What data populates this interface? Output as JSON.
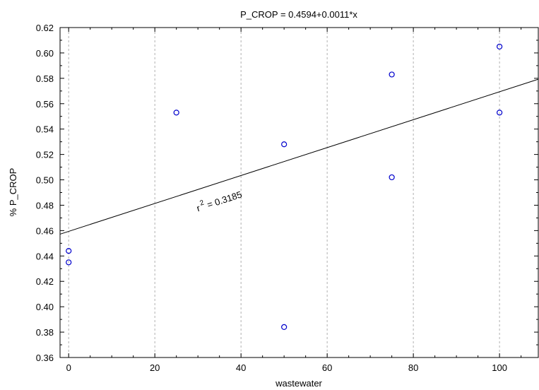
{
  "chart_data": {
    "type": "scatter",
    "title": "P_CROP = 0.4594+0.0011*x",
    "xlabel": "wastewater",
    "ylabel": "% P_CROP",
    "xlim": [
      -2,
      109
    ],
    "ylim": [
      0.36,
      0.62
    ],
    "x_ticks": [
      0,
      20,
      40,
      60,
      80,
      100
    ],
    "x_tick_labels": [
      "0",
      "20",
      "40",
      "60",
      "80",
      "100"
    ],
    "y_ticks": [
      0.36,
      0.38,
      0.4,
      0.42,
      0.44,
      0.46,
      0.48,
      0.5,
      0.52,
      0.54,
      0.56,
      0.58,
      0.6,
      0.62
    ],
    "y_tick_labels": [
      "0.36",
      "0.38",
      "0.40",
      "0.42",
      "0.44",
      "0.46",
      "0.48",
      "0.50",
      "0.52",
      "0.54",
      "0.56",
      "0.58",
      "0.60",
      "0.62"
    ],
    "vertical_grid": true,
    "horizontal_grid": false,
    "points": [
      {
        "x": 0,
        "y": 0.444
      },
      {
        "x": 0,
        "y": 0.435
      },
      {
        "x": 25,
        "y": 0.553
      },
      {
        "x": 50,
        "y": 0.528
      },
      {
        "x": 50,
        "y": 0.384
      },
      {
        "x": 75,
        "y": 0.583
      },
      {
        "x": 75,
        "y": 0.502
      },
      {
        "x": 100,
        "y": 0.605
      },
      {
        "x": 100,
        "y": 0.553
      }
    ],
    "fit": {
      "intercept": 0.4594,
      "slope": 0.0011
    },
    "annotation": {
      "base": "r",
      "sup": "2",
      "rest": " = 0.3185",
      "x": 30,
      "y": 0.475
    },
    "colors": {
      "point": "#0000cc",
      "line": "#000000",
      "grid": "#b0b0b0"
    }
  }
}
